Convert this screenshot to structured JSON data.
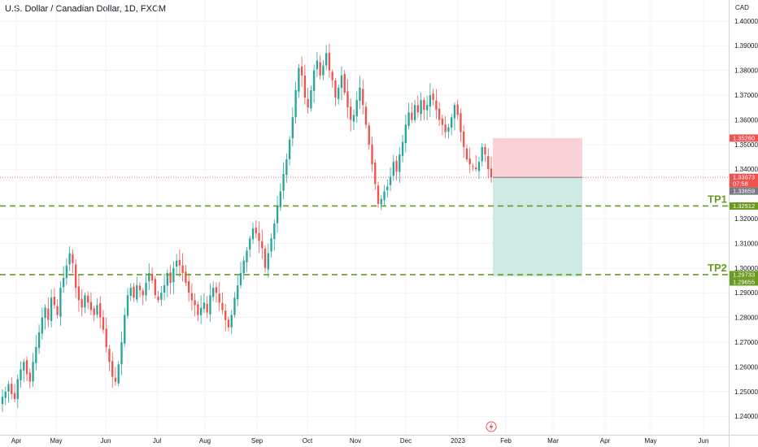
{
  "header": {
    "symbol_title": "U.S. Dollar / Canadian Dollar, 1D, FXCM"
  },
  "colors": {
    "up": "#26a69a",
    "down": "#ef5350",
    "target_line": "#6a9a1f",
    "stop_zone": "#f9d1d6",
    "profit_zone": "#cdebe4",
    "price_tag_gray": "#787b86"
  },
  "chart_data": {
    "type": "candlestick",
    "title": "U.S. Dollar / Canadian Dollar, 1D, FXCM",
    "currency_label": "CAD",
    "ylim": [
      1.2325,
      1.4085
    ],
    "y_ticks": [
      "1.40000",
      "1.39000",
      "1.38000",
      "1.37000",
      "1.36000",
      "1.35000",
      "1.34000",
      "1.32000",
      "1.31000",
      "1.30000",
      "1.29000",
      "1.28000",
      "1.27000",
      "1.26000",
      "1.25000",
      "1.24000"
    ],
    "x_ticks": [
      "Apr",
      "May",
      "Jun",
      "Jul",
      "Aug",
      "Sep",
      "Oct",
      "Nov",
      "Dec",
      "2023",
      "Feb",
      "Mar",
      "Apr",
      "May",
      "Jun"
    ],
    "closes": [
      1.248,
      1.25,
      1.253,
      1.249,
      1.247,
      1.255,
      1.259,
      1.262,
      1.257,
      1.254,
      1.262,
      1.268,
      1.274,
      1.28,
      1.284,
      1.279,
      1.288,
      1.285,
      1.281,
      1.292,
      1.296,
      1.301,
      1.306,
      1.302,
      1.292,
      1.287,
      1.284,
      1.289,
      1.286,
      1.283,
      1.281,
      1.285,
      1.28,
      1.275,
      1.268,
      1.262,
      1.256,
      1.254,
      1.261,
      1.27,
      1.281,
      1.289,
      1.292,
      1.288,
      1.293,
      1.291,
      1.289,
      1.294,
      1.298,
      1.295,
      1.289,
      1.287,
      1.29,
      1.293,
      1.298,
      1.294,
      1.3,
      1.303,
      1.301,
      1.298,
      1.294,
      1.29,
      1.287,
      1.285,
      1.281,
      1.284,
      1.286,
      1.282,
      1.289,
      1.292,
      1.29,
      1.286,
      1.283,
      1.279,
      1.276,
      1.281,
      1.288,
      1.293,
      1.298,
      1.303,
      1.307,
      1.312,
      1.316,
      1.314,
      1.311,
      1.308,
      1.3,
      1.306,
      1.312,
      1.318,
      1.325,
      1.331,
      1.338,
      1.344,
      1.352,
      1.361,
      1.372,
      1.381,
      1.378,
      1.369,
      1.365,
      1.372,
      1.38,
      1.384,
      1.378,
      1.382,
      1.387,
      1.38,
      1.376,
      1.369,
      1.373,
      1.378,
      1.371,
      1.365,
      1.36,
      1.362,
      1.368,
      1.373,
      1.366,
      1.358,
      1.35,
      1.342,
      1.334,
      1.326,
      1.328,
      1.331,
      1.333,
      1.337,
      1.343,
      1.339,
      1.346,
      1.351,
      1.358,
      1.363,
      1.36,
      1.366,
      1.363,
      1.368,
      1.364,
      1.366,
      1.37,
      1.368,
      1.364,
      1.36,
      1.358,
      1.355,
      1.357,
      1.361,
      1.366,
      1.362,
      1.355,
      1.349,
      1.344,
      1.342,
      1.341,
      1.34,
      1.343,
      1.349,
      1.346,
      1.34,
      1.3367
    ],
    "position_tool": {
      "entry": 1.3367,
      "stop": 1.3526,
      "target": 1.29655
    },
    "levels": [
      {
        "name": "TP1",
        "price": 1.32512
      },
      {
        "name": "TP2",
        "price": 1.29733
      }
    ],
    "price_tags": [
      {
        "label": "1.35260",
        "price": 1.3526,
        "kind": "stop"
      },
      {
        "label": "1.33673",
        "sub": "07:58",
        "price": 1.33673,
        "kind": "last"
      },
      {
        "label": "1.33659",
        "price": 1.33659,
        "kind": "gray"
      },
      {
        "label": "1.32512",
        "price": 1.32512,
        "kind": "green"
      },
      {
        "label": "1.29733",
        "price": 1.29733,
        "kind": "green"
      },
      {
        "label": "1.29655",
        "price": 1.29655,
        "kind": "green"
      }
    ],
    "grid": true
  }
}
